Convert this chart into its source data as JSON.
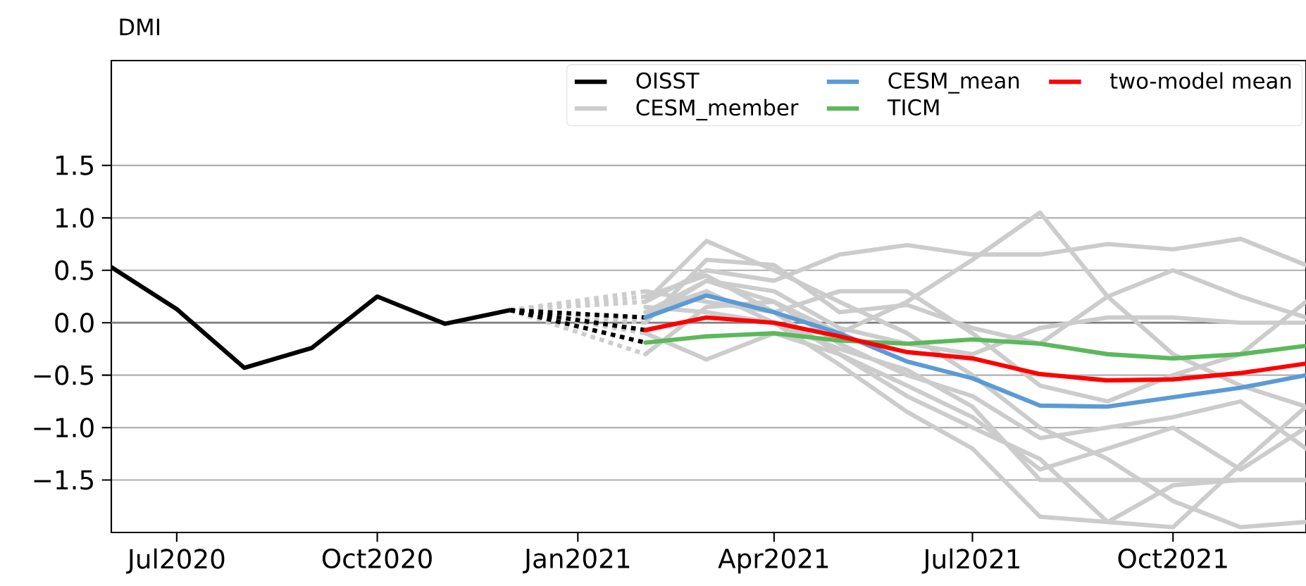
{
  "chart_data": {
    "type": "line",
    "title": "DMI",
    "xlim": [
      "2020-06-01",
      "2021-12-01"
    ],
    "ylim": [
      -2,
      2.5
    ],
    "xticks": [
      {
        "value": "2020-07-01",
        "label": "Jul2020"
      },
      {
        "value": "2020-10-01",
        "label": "Oct2020"
      },
      {
        "value": "2021-01-01",
        "label": "Jan2021"
      },
      {
        "value": "2021-04-01",
        "label": "Apr2021"
      },
      {
        "value": "2021-07-01",
        "label": "Jul2021"
      },
      {
        "value": "2021-10-01",
        "label": "Oct2021"
      }
    ],
    "yticks": [
      {
        "value": -1.5,
        "label": "−1.5"
      },
      {
        "value": -1,
        "label": "−1.0"
      },
      {
        "value": -0.5,
        "label": "−0.5"
      },
      {
        "value": 0,
        "label": "0.0"
      },
      {
        "value": 0.5,
        "label": "0.5"
      },
      {
        "value": 1,
        "label": "1.0"
      },
      {
        "value": 1.5,
        "label": "1.5"
      }
    ],
    "grid": "y",
    "legend": "top right",
    "ref_lines": [
      {
        "axis": "y",
        "value": 0,
        "color": "#808080"
      }
    ],
    "series": [
      {
        "name": "OISST",
        "color": "#000000",
        "x": [
          "2020-06-01",
          "2020-07-01",
          "2020-08-01",
          "2020-09-01",
          "2020-10-01",
          "2020-11-01",
          "2020-12-01"
        ],
        "values": [
          0.53,
          0.13,
          -0.43,
          -0.24,
          0.25,
          -0.01,
          0.12
        ]
      },
      {
        "name": "CESM_member",
        "color": "#cccccc",
        "x": [
          "2021-02-01",
          "2021-03-01",
          "2021-04-01",
          "2021-05-01",
          "2021-06-01",
          "2021-07-01",
          "2021-08-01",
          "2021-09-01",
          "2021-10-01",
          "2021-11-01",
          "2021-12-01"
        ],
        "values": [
          0.1,
          0.4,
          0.2,
          -0.1,
          0.2,
          0.6,
          1.05,
          0.25,
          -0.3,
          -0.6,
          -0.8
        ]
      },
      {
        "color": "#cccccc",
        "x": [
          "2021-02-01",
          "2021-03-01",
          "2021-04-01",
          "2021-05-01",
          "2021-06-01",
          "2021-07-01",
          "2021-08-01",
          "2021-09-01",
          "2021-10-01",
          "2021-11-01",
          "2021-12-01"
        ],
        "values": [
          0.2,
          0.5,
          0.4,
          0.65,
          0.74,
          0.65,
          0.65,
          0.75,
          0.7,
          0.8,
          0.55
        ]
      },
      {
        "color": "#cccccc",
        "x": [
          "2021-02-01",
          "2021-03-01",
          "2021-04-01",
          "2021-05-01",
          "2021-06-01",
          "2021-07-01",
          "2021-08-01",
          "2021-09-01",
          "2021-10-01",
          "2021-11-01",
          "2021-12-01"
        ],
        "values": [
          0.2,
          0.78,
          0.5,
          0.2,
          -0.1,
          -0.5,
          -1.0,
          -1.3,
          -1.7,
          -1.95,
          -1.9
        ]
      },
      {
        "color": "#cccccc",
        "x": [
          "2021-02-01",
          "2021-03-01",
          "2021-04-01",
          "2021-05-01",
          "2021-06-01",
          "2021-07-01",
          "2021-08-01",
          "2021-09-01",
          "2021-10-01",
          "2021-11-01",
          "2021-12-01"
        ],
        "values": [
          0.0,
          0.6,
          0.55,
          0.1,
          0.17,
          -0.05,
          -0.2,
          0.25,
          0.5,
          0.25,
          0.05
        ]
      },
      {
        "color": "#cccccc",
        "x": [
          "2021-02-01",
          "2021-03-01",
          "2021-04-01",
          "2021-05-01",
          "2021-06-01",
          "2021-07-01",
          "2021-08-01",
          "2021-09-01",
          "2021-10-01",
          "2021-11-01",
          "2021-12-01"
        ],
        "values": [
          -0.1,
          -0.35,
          -0.1,
          -0.3,
          -0.6,
          -0.9,
          -1.4,
          -1.2,
          -1.0,
          -1.4,
          -1.0
        ]
      },
      {
        "color": "#cccccc",
        "x": [
          "2021-02-01",
          "2021-03-01",
          "2021-04-01",
          "2021-05-01",
          "2021-06-01",
          "2021-07-01",
          "2021-08-01",
          "2021-09-01",
          "2021-10-01",
          "2021-11-01",
          "2021-12-01"
        ],
        "values": [
          0.3,
          0.2,
          0.1,
          -0.3,
          -0.7,
          -1.0,
          -1.3,
          -1.9,
          -1.55,
          -1.5,
          -1.5
        ]
      },
      {
        "color": "#cccccc",
        "x": [
          "2021-02-01",
          "2021-03-01",
          "2021-04-01",
          "2021-05-01",
          "2021-06-01",
          "2021-07-01",
          "2021-08-01",
          "2021-09-01",
          "2021-10-01",
          "2021-11-01",
          "2021-12-01"
        ],
        "values": [
          0.1,
          0.3,
          0.0,
          -0.4,
          -0.85,
          -1.2,
          -1.85,
          -1.9,
          -1.95,
          -1.35,
          -0.8
        ]
      },
      {
        "color": "#cccccc",
        "x": [
          "2021-02-01",
          "2021-03-01",
          "2021-04-01",
          "2021-05-01",
          "2021-06-01",
          "2021-07-01",
          "2021-08-01",
          "2021-09-01",
          "2021-10-01",
          "2021-11-01",
          "2021-12-01"
        ],
        "values": [
          -0.3,
          0.15,
          0.2,
          -0.2,
          -0.5,
          -0.7,
          -1.1,
          -1.0,
          -0.9,
          -0.75,
          -1.2
        ]
      },
      {
        "color": "#cccccc",
        "x": [
          "2021-02-01",
          "2021-03-01",
          "2021-04-01",
          "2021-05-01",
          "2021-06-01",
          "2021-07-01",
          "2021-08-01",
          "2021-09-01",
          "2021-10-01",
          "2021-11-01",
          "2021-12-01"
        ],
        "values": [
          0.05,
          0.4,
          0.3,
          -0.05,
          -0.2,
          -0.3,
          -0.05,
          0.05,
          0.05,
          0.0,
          0.0
        ]
      },
      {
        "color": "#cccccc",
        "x": [
          "2021-02-01",
          "2021-03-01",
          "2021-04-01",
          "2021-05-01",
          "2021-06-01",
          "2021-07-01",
          "2021-08-01",
          "2021-09-01",
          "2021-10-01",
          "2021-11-01",
          "2021-12-01"
        ],
        "values": [
          0.15,
          0.1,
          0.0,
          -0.25,
          -0.45,
          -0.8,
          -1.5,
          -1.5,
          -1.5,
          -1.5,
          -1.5
        ]
      },
      {
        "color": "#cccccc",
        "x": [
          "2021-02-01",
          "2021-03-01",
          "2021-04-01",
          "2021-05-01",
          "2021-06-01",
          "2021-07-01",
          "2021-08-01",
          "2021-09-01",
          "2021-10-01",
          "2021-11-01",
          "2021-12-01"
        ],
        "values": [
          0.25,
          0.45,
          0.1,
          0.3,
          0.3,
          -0.1,
          -0.6,
          -0.75,
          -0.5,
          -0.3,
          0.2
        ]
      },
      {
        "color": "#cccccc",
        "line_style": "dotted",
        "x": [
          "2020-12-01",
          "2021-02-01"
        ],
        "values": [
          0.12,
          0.3
        ]
      },
      {
        "color": "#cccccc",
        "line_style": "dotted",
        "x": [
          "2020-12-01",
          "2021-02-01"
        ],
        "values": [
          0.12,
          0.2
        ]
      },
      {
        "color": "#cccccc",
        "line_style": "dotted",
        "x": [
          "2020-12-01",
          "2021-02-01"
        ],
        "values": [
          0.12,
          0.0
        ]
      },
      {
        "color": "#cccccc",
        "line_style": "dotted",
        "x": [
          "2020-12-01",
          "2021-02-01"
        ],
        "values": [
          0.12,
          -0.1
        ]
      },
      {
        "color": "#cccccc",
        "line_style": "dotted",
        "x": [
          "2020-12-01",
          "2021-02-01"
        ],
        "values": [
          0.12,
          -0.3
        ]
      },
      {
        "color": "#cccccc",
        "line_style": "dotted",
        "x": [
          "2020-12-01",
          "2021-02-01"
        ],
        "values": [
          0.12,
          0.25
        ]
      },
      {
        "color": "#000000",
        "line_style": "dotted",
        "x": [
          "2020-12-01",
          "2021-02-01"
        ],
        "values": [
          0.12,
          0.05
        ]
      },
      {
        "color": "#000000",
        "line_style": "dotted",
        "x": [
          "2020-12-01",
          "2021-02-01"
        ],
        "values": [
          0.12,
          -0.07
        ]
      },
      {
        "color": "#000000",
        "line_style": "dotted",
        "x": [
          "2020-12-01",
          "2021-02-01"
        ],
        "values": [
          0.12,
          -0.19
        ]
      },
      {
        "name": "CESM_mean",
        "color": "#5b9bd5",
        "x": [
          "2021-02-01",
          "2021-03-01",
          "2021-04-01",
          "2021-05-01",
          "2021-06-01",
          "2021-07-01",
          "2021-08-01",
          "2021-09-01",
          "2021-10-01",
          "2021-11-01",
          "2021-12-01"
        ],
        "values": [
          0.05,
          0.26,
          0.1,
          -0.1,
          -0.37,
          -0.53,
          -0.79,
          -0.8,
          -0.71,
          -0.62,
          -0.5
        ]
      },
      {
        "name": "TICM",
        "color": "#5cb85c",
        "x": [
          "2021-02-01",
          "2021-03-01",
          "2021-04-01",
          "2021-05-01",
          "2021-06-01",
          "2021-07-01",
          "2021-08-01",
          "2021-09-01",
          "2021-10-01",
          "2021-11-01",
          "2021-12-01"
        ],
        "values": [
          -0.19,
          -0.13,
          -0.1,
          -0.17,
          -0.2,
          -0.16,
          -0.2,
          -0.3,
          -0.34,
          -0.3,
          -0.22
        ]
      },
      {
        "name": "two-model mean",
        "color": "#ff0000",
        "x": [
          "2021-02-01",
          "2021-03-01",
          "2021-04-01",
          "2021-05-01",
          "2021-06-01",
          "2021-07-01",
          "2021-08-01",
          "2021-09-01",
          "2021-10-01",
          "2021-11-01",
          "2021-12-01"
        ],
        "values": [
          -0.07,
          0.05,
          0.0,
          -0.13,
          -0.28,
          -0.34,
          -0.49,
          -0.55,
          -0.54,
          -0.48,
          -0.39
        ]
      }
    ]
  }
}
